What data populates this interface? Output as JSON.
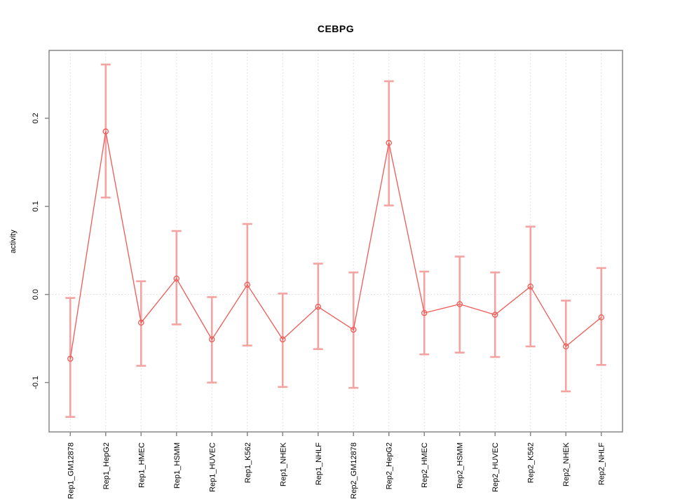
{
  "figure": {
    "background": "#ffffff"
  },
  "chart_data": {
    "type": "scatter",
    "title": "CEBPG",
    "xlabel": "",
    "ylabel": "activity",
    "categories": [
      "Rep1_GM12878",
      "Rep1_HepG2",
      "Rep1_HMEC",
      "Rep1_HSMM",
      "Rep1_HUVEC",
      "Rep1_K562",
      "Rep1_NHEK",
      "Rep1_NHLF",
      "Rep2_GM12878",
      "Rep2_HepG2",
      "Rep2_HMEC",
      "Rep2_HSMM",
      "Rep2_HUVEC",
      "Rep2_K562",
      "Rep2_NHEK",
      "Rep2_NHLF"
    ],
    "series": [
      {
        "name": "activity",
        "values": [
          -0.073,
          0.185,
          -0.032,
          0.018,
          -0.051,
          0.011,
          -0.051,
          -0.014,
          -0.04,
          0.172,
          -0.021,
          -0.011,
          -0.023,
          0.009,
          -0.059,
          -0.026
        ],
        "error_low": [
          -0.139,
          0.11,
          -0.081,
          -0.034,
          -0.1,
          -0.058,
          -0.105,
          -0.062,
          -0.106,
          0.101,
          -0.068,
          -0.066,
          -0.071,
          -0.059,
          -0.11,
          -0.08
        ],
        "error_high": [
          -0.004,
          0.261,
          0.015,
          0.072,
          -0.003,
          0.08,
          0.001,
          0.035,
          0.025,
          0.242,
          0.026,
          0.043,
          0.025,
          0.077,
          -0.007,
          0.03
        ]
      }
    ],
    "yticks": [
      -0.1,
      0.0,
      0.1,
      0.2
    ],
    "ytick_labels": [
      "-0.1",
      "0.0",
      "0.1",
      "0.2"
    ],
    "ylim": [
      -0.156,
      0.277
    ],
    "grid": "dotted vertical line at each category; dotted horizontal line at y=0",
    "legend": "none",
    "colors": {
      "point_line": "#ee5a56",
      "error_bar": "#f5a3a1",
      "grid": "#d8d8d8",
      "frame": "#878787",
      "text": "#000000"
    }
  }
}
